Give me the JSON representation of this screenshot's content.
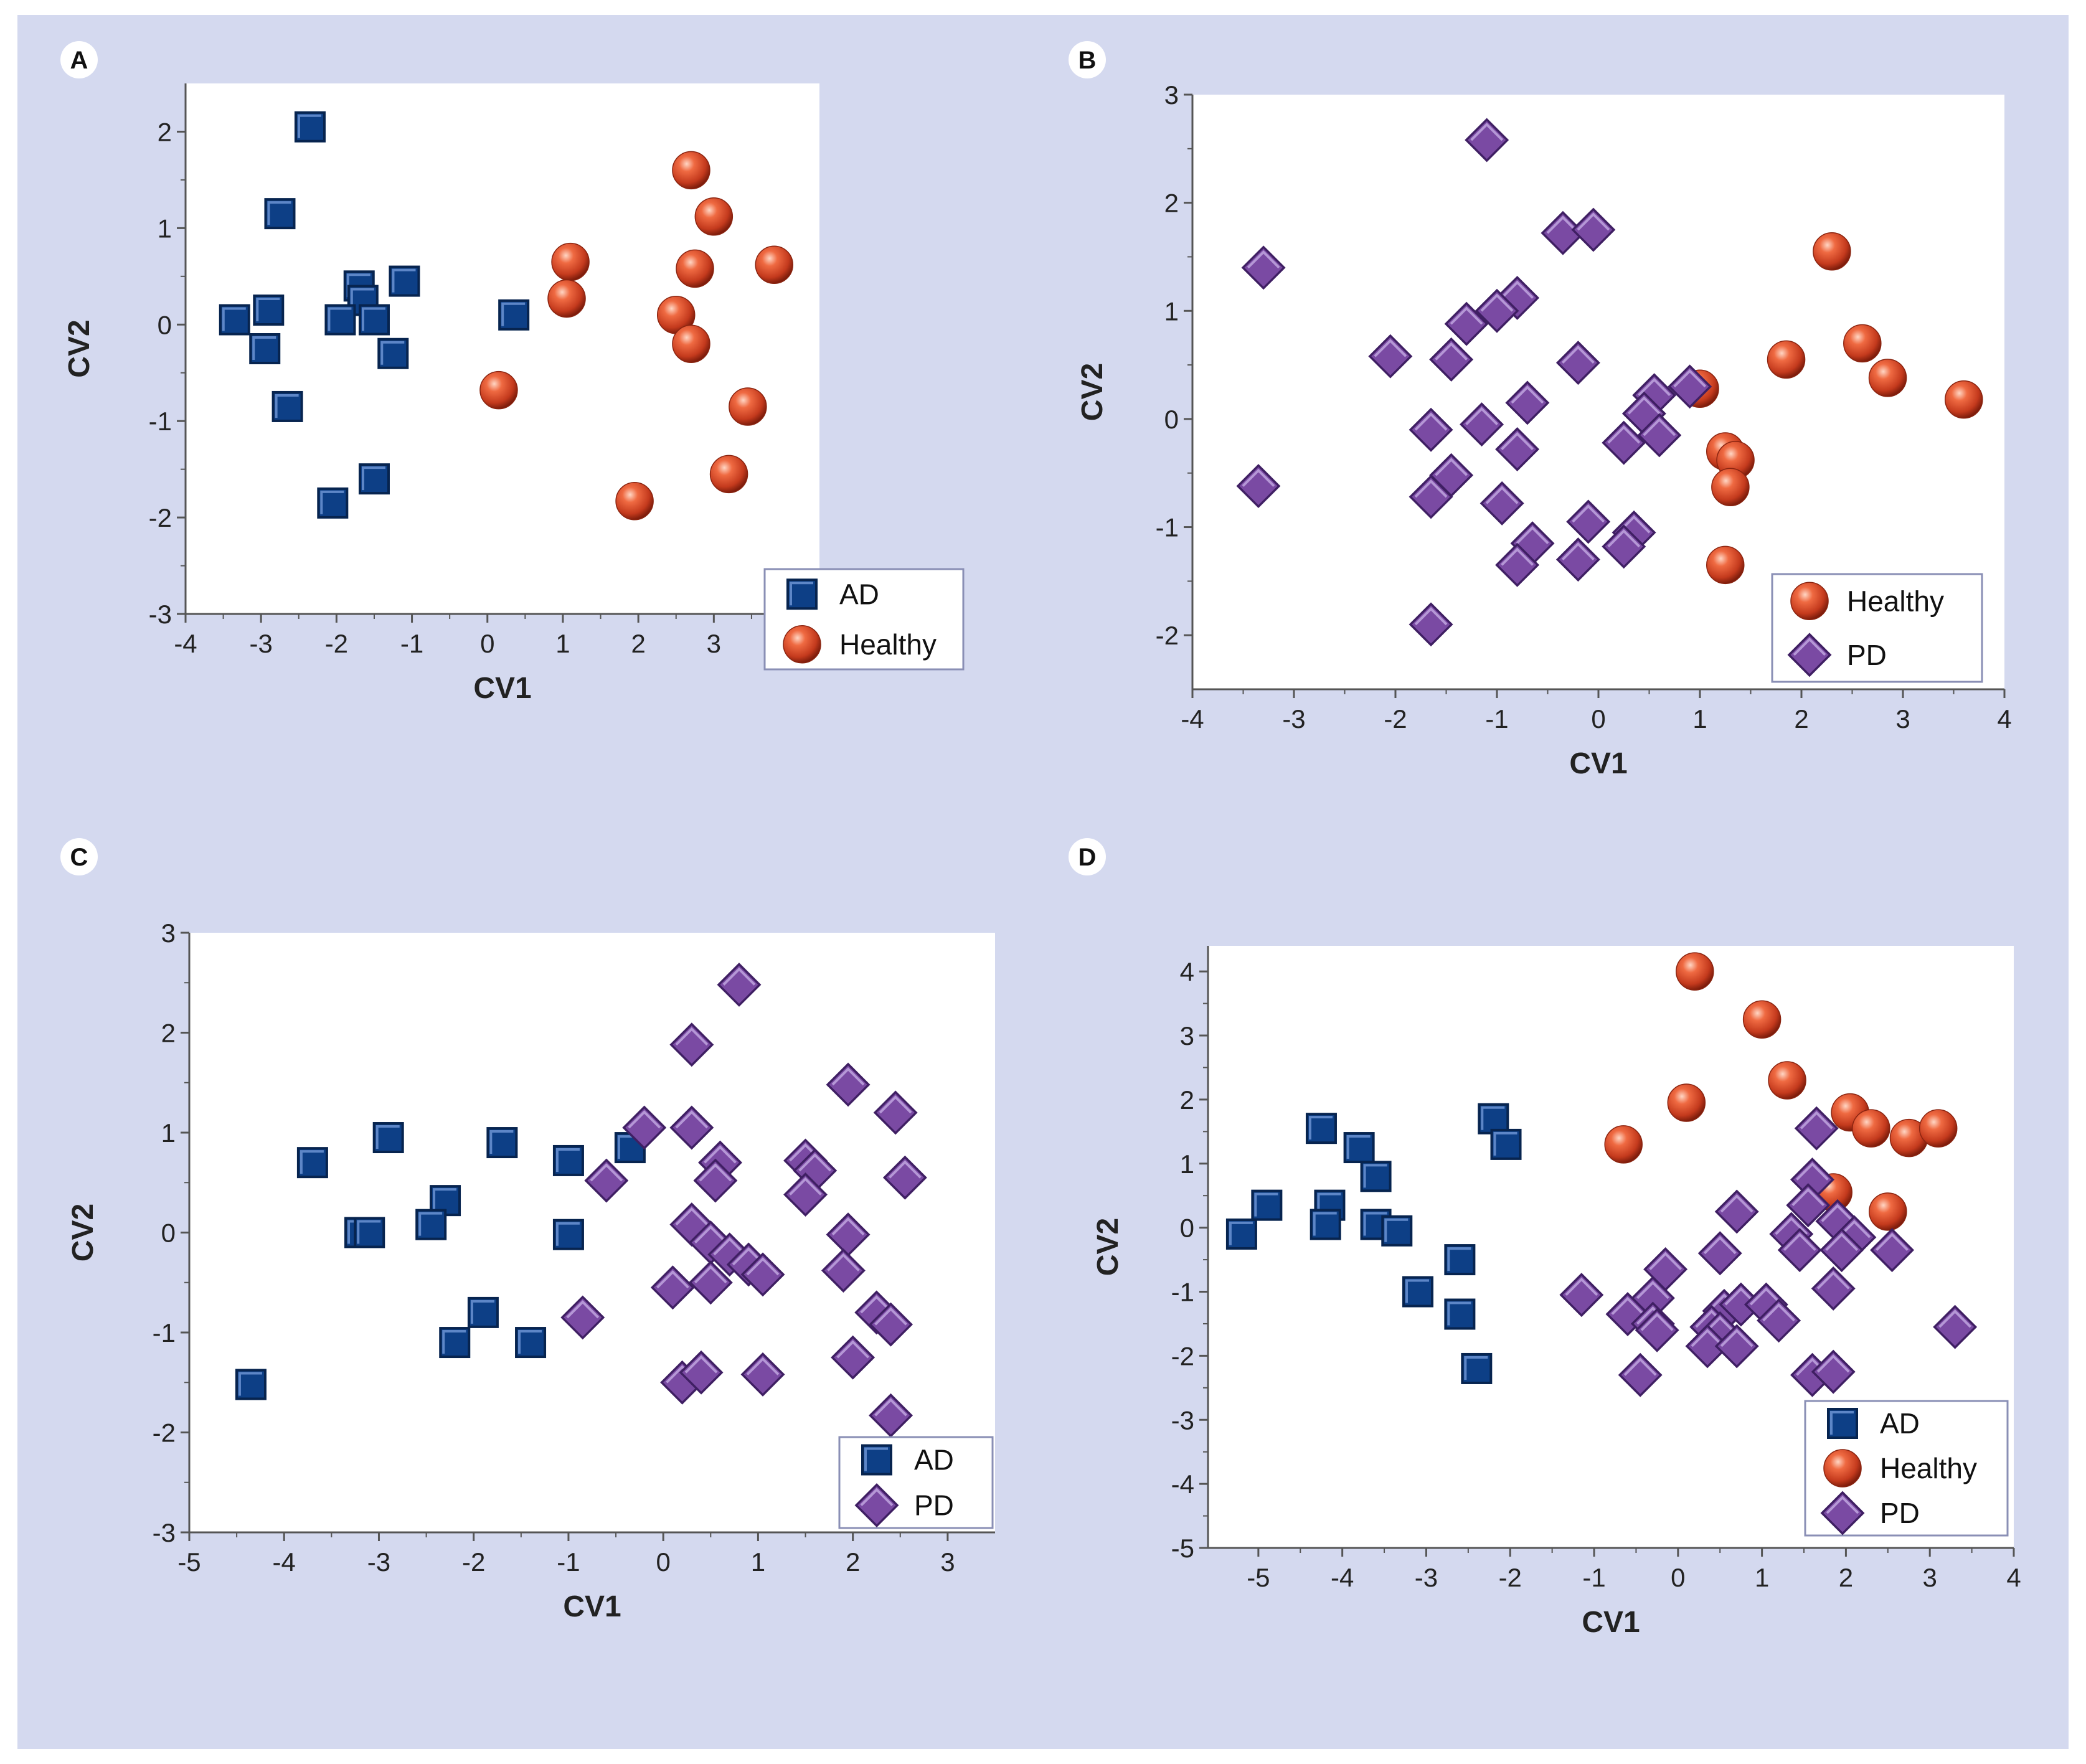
{
  "chart_data": [
    {
      "panel": "A",
      "type": "scatter",
      "xlabel": "CV1",
      "ylabel": "CV2",
      "xlim": [
        -4,
        4.4
      ],
      "ylim": [
        -3,
        2.5
      ],
      "xticks": [
        -4,
        -3,
        -2,
        -1,
        0,
        1,
        2,
        3,
        4
      ],
      "yticks": [
        -3,
        -2,
        -1,
        0,
        1,
        2
      ],
      "legend_position": "bottom-right",
      "series": [
        {
          "name": "AD",
          "marker": "square",
          "color": "#0d3f86",
          "points": [
            [
              -2.35,
              2.05
            ],
            [
              -2.75,
              1.15
            ],
            [
              -3.35,
              0.05
            ],
            [
              -2.9,
              0.15
            ],
            [
              -2.95,
              -0.25
            ],
            [
              -2.65,
              -0.85
            ],
            [
              -1.7,
              0.4
            ],
            [
              -1.65,
              0.25
            ],
            [
              -1.95,
              0.05
            ],
            [
              -1.5,
              0.05
            ],
            [
              -1.1,
              0.45
            ],
            [
              -1.25,
              -0.3
            ],
            [
              -2.05,
              -1.85
            ],
            [
              -1.5,
              -1.6
            ],
            [
              0.35,
              0.1
            ]
          ]
        },
        {
          "name": "Healthy",
          "marker": "sphere",
          "color": "#d2452a",
          "points": [
            [
              2.7,
              1.6
            ],
            [
              3.0,
              1.12
            ],
            [
              2.75,
              0.58
            ],
            [
              3.8,
              0.62
            ],
            [
              1.1,
              0.65
            ],
            [
              1.05,
              0.27
            ],
            [
              2.5,
              0.1
            ],
            [
              2.7,
              -0.2
            ],
            [
              0.15,
              -0.68
            ],
            [
              3.45,
              -0.85
            ],
            [
              3.2,
              -1.55
            ],
            [
              1.95,
              -1.83
            ]
          ]
        }
      ]
    },
    {
      "panel": "B",
      "type": "scatter",
      "xlabel": "CV1",
      "ylabel": "CV2",
      "xlim": [
        -4,
        4
      ],
      "ylim": [
        -2.5,
        3
      ],
      "xticks": [
        -4,
        -3,
        -2,
        -1,
        0,
        1,
        2,
        3,
        4
      ],
      "yticks": [
        -2,
        -1,
        0,
        1,
        2,
        3
      ],
      "legend_position": "bottom-right",
      "series": [
        {
          "name": "Healthy",
          "marker": "sphere",
          "color": "#d2452a",
          "points": [
            [
              2.3,
              1.55
            ],
            [
              2.6,
              0.7
            ],
            [
              1.85,
              0.55
            ],
            [
              2.85,
              0.38
            ],
            [
              3.6,
              0.18
            ],
            [
              1.0,
              0.28
            ],
            [
              1.25,
              -0.3
            ],
            [
              1.35,
              -0.38
            ],
            [
              1.3,
              -0.63
            ],
            [
              1.25,
              -1.35
            ]
          ]
        },
        {
          "name": "PD",
          "marker": "diamond",
          "color": "#7a4aa3",
          "points": [
            [
              -1.1,
              2.58
            ],
            [
              -0.35,
              1.72
            ],
            [
              -0.05,
              1.75
            ],
            [
              -3.3,
              1.4
            ],
            [
              -0.8,
              1.12
            ],
            [
              -1.0,
              1.0
            ],
            [
              -1.3,
              0.88
            ],
            [
              -2.05,
              0.58
            ],
            [
              -1.45,
              0.55
            ],
            [
              -0.2,
              0.52
            ],
            [
              -0.7,
              0.15
            ],
            [
              0.55,
              0.22
            ],
            [
              0.9,
              0.3
            ],
            [
              0.45,
              0.05
            ],
            [
              -1.65,
              -0.1
            ],
            [
              -1.15,
              -0.05
            ],
            [
              0.25,
              -0.22
            ],
            [
              0.6,
              -0.15
            ],
            [
              -0.8,
              -0.28
            ],
            [
              -1.45,
              -0.52
            ],
            [
              -1.65,
              -0.72
            ],
            [
              -3.35,
              -0.62
            ],
            [
              -0.95,
              -0.78
            ],
            [
              -0.1,
              -0.95
            ],
            [
              0.35,
              -1.05
            ],
            [
              -0.65,
              -1.15
            ],
            [
              0.25,
              -1.18
            ],
            [
              -0.8,
              -1.35
            ],
            [
              -0.2,
              -1.3
            ],
            [
              -1.65,
              -1.9
            ]
          ]
        }
      ]
    },
    {
      "panel": "C",
      "type": "scatter",
      "xlabel": "CV1",
      "ylabel": "CV2",
      "xlim": [
        -5,
        3.5
      ],
      "ylim": [
        -3,
        3
      ],
      "xticks": [
        -5,
        -4,
        -3,
        -2,
        -1,
        0,
        1,
        2,
        3
      ],
      "yticks": [
        -3,
        -2,
        -1,
        0,
        1,
        2,
        3
      ],
      "legend_position": "bottom-right",
      "series": [
        {
          "name": "AD",
          "marker": "square",
          "color": "#0d3f86",
          "points": [
            [
              -3.7,
              0.7
            ],
            [
              -2.9,
              0.95
            ],
            [
              -1.7,
              0.9
            ],
            [
              -1.0,
              0.72
            ],
            [
              -0.35,
              0.85
            ],
            [
              -3.2,
              0.0
            ],
            [
              -3.1,
              0.0
            ],
            [
              -2.3,
              0.32
            ],
            [
              -2.45,
              0.08
            ],
            [
              -1.0,
              -0.02
            ],
            [
              -1.9,
              -0.8
            ],
            [
              -2.2,
              -1.1
            ],
            [
              -1.4,
              -1.1
            ],
            [
              -4.35,
              -1.52
            ]
          ]
        },
        {
          "name": "PD",
          "marker": "diamond",
          "color": "#7a4aa3",
          "points": [
            [
              0.8,
              2.48
            ],
            [
              0.3,
              1.88
            ],
            [
              -0.2,
              1.05
            ],
            [
              0.3,
              1.05
            ],
            [
              -0.6,
              0.52
            ],
            [
              0.6,
              0.7
            ],
            [
              0.55,
              0.52
            ],
            [
              1.5,
              0.72
            ],
            [
              1.6,
              0.62
            ],
            [
              1.5,
              0.38
            ],
            [
              1.95,
              1.48
            ],
            [
              2.45,
              1.2
            ],
            [
              2.55,
              0.55
            ],
            [
              0.3,
              0.08
            ],
            [
              0.5,
              -0.1
            ],
            [
              0.7,
              -0.22
            ],
            [
              0.9,
              -0.32
            ],
            [
              1.05,
              -0.42
            ],
            [
              1.95,
              -0.02
            ],
            [
              1.9,
              -0.38
            ],
            [
              0.1,
              -0.55
            ],
            [
              0.5,
              -0.5
            ],
            [
              -0.85,
              -0.85
            ],
            [
              2.25,
              -0.8
            ],
            [
              2.4,
              -0.92
            ],
            [
              2.0,
              -1.25
            ],
            [
              0.2,
              -1.5
            ],
            [
              0.4,
              -1.4
            ],
            [
              1.05,
              -1.42
            ],
            [
              2.4,
              -1.83
            ]
          ]
        }
      ]
    },
    {
      "panel": "D",
      "type": "scatter",
      "xlabel": "CV1",
      "ylabel": "CV2",
      "xlim": [
        -5.6,
        4
      ],
      "ylim": [
        -5,
        4.4
      ],
      "xticks": [
        -5,
        -4,
        -3,
        -2,
        -1,
        0,
        1,
        2,
        3,
        4
      ],
      "yticks": [
        -5,
        -4,
        -3,
        -2,
        -1,
        0,
        1,
        2,
        3,
        4
      ],
      "legend_position": "bottom-right",
      "series": [
        {
          "name": "AD",
          "marker": "square",
          "color": "#0d3f86",
          "points": [
            [
              -4.25,
              1.55
            ],
            [
              -3.8,
              1.25
            ],
            [
              -3.6,
              0.8
            ],
            [
              -4.9,
              0.35
            ],
            [
              -4.15,
              0.35
            ],
            [
              -5.2,
              -0.1
            ],
            [
              -4.2,
              0.05
            ],
            [
              -3.6,
              0.05
            ],
            [
              -3.35,
              -0.05
            ],
            [
              -2.2,
              1.7
            ],
            [
              -2.05,
              1.3
            ],
            [
              -2.6,
              -0.5
            ],
            [
              -3.1,
              -1.0
            ],
            [
              -2.6,
              -1.35
            ],
            [
              -2.4,
              -2.2
            ]
          ]
        },
        {
          "name": "Healthy",
          "marker": "sphere",
          "color": "#d2452a",
          "points": [
            [
              0.2,
              4.0
            ],
            [
              1.0,
              3.25
            ],
            [
              1.3,
              2.3
            ],
            [
              0.1,
              1.95
            ],
            [
              -0.65,
              1.3
            ],
            [
              2.05,
              1.8
            ],
            [
              2.3,
              1.55
            ],
            [
              2.75,
              1.4
            ],
            [
              3.1,
              1.55
            ],
            [
              1.85,
              0.55
            ],
            [
              2.5,
              0.25
            ]
          ]
        },
        {
          "name": "PD",
          "marker": "diamond",
          "color": "#7a4aa3",
          "points": [
            [
              1.65,
              1.55
            ],
            [
              1.6,
              0.75
            ],
            [
              1.55,
              0.35
            ],
            [
              0.7,
              0.25
            ],
            [
              1.9,
              0.1
            ],
            [
              1.35,
              -0.1
            ],
            [
              1.45,
              -0.35
            ],
            [
              2.1,
              -0.15
            ],
            [
              1.95,
              -0.35
            ],
            [
              2.55,
              -0.35
            ],
            [
              0.5,
              -0.4
            ],
            [
              -0.15,
              -0.65
            ],
            [
              1.85,
              -0.95
            ],
            [
              -1.15,
              -1.05
            ],
            [
              -0.3,
              -1.1
            ],
            [
              -0.6,
              -1.35
            ],
            [
              -0.3,
              -1.5
            ],
            [
              0.55,
              -1.3
            ],
            [
              0.75,
              -1.2
            ],
            [
              1.05,
              -1.2
            ],
            [
              1.2,
              -1.45
            ],
            [
              -0.25,
              -1.6
            ],
            [
              0.4,
              -1.55
            ],
            [
              0.5,
              -1.65
            ],
            [
              0.35,
              -1.85
            ],
            [
              0.7,
              -1.85
            ],
            [
              1.6,
              -2.3
            ],
            [
              1.85,
              -2.25
            ],
            [
              -0.45,
              -2.3
            ],
            [
              3.3,
              -1.55
            ]
          ]
        }
      ]
    }
  ]
}
